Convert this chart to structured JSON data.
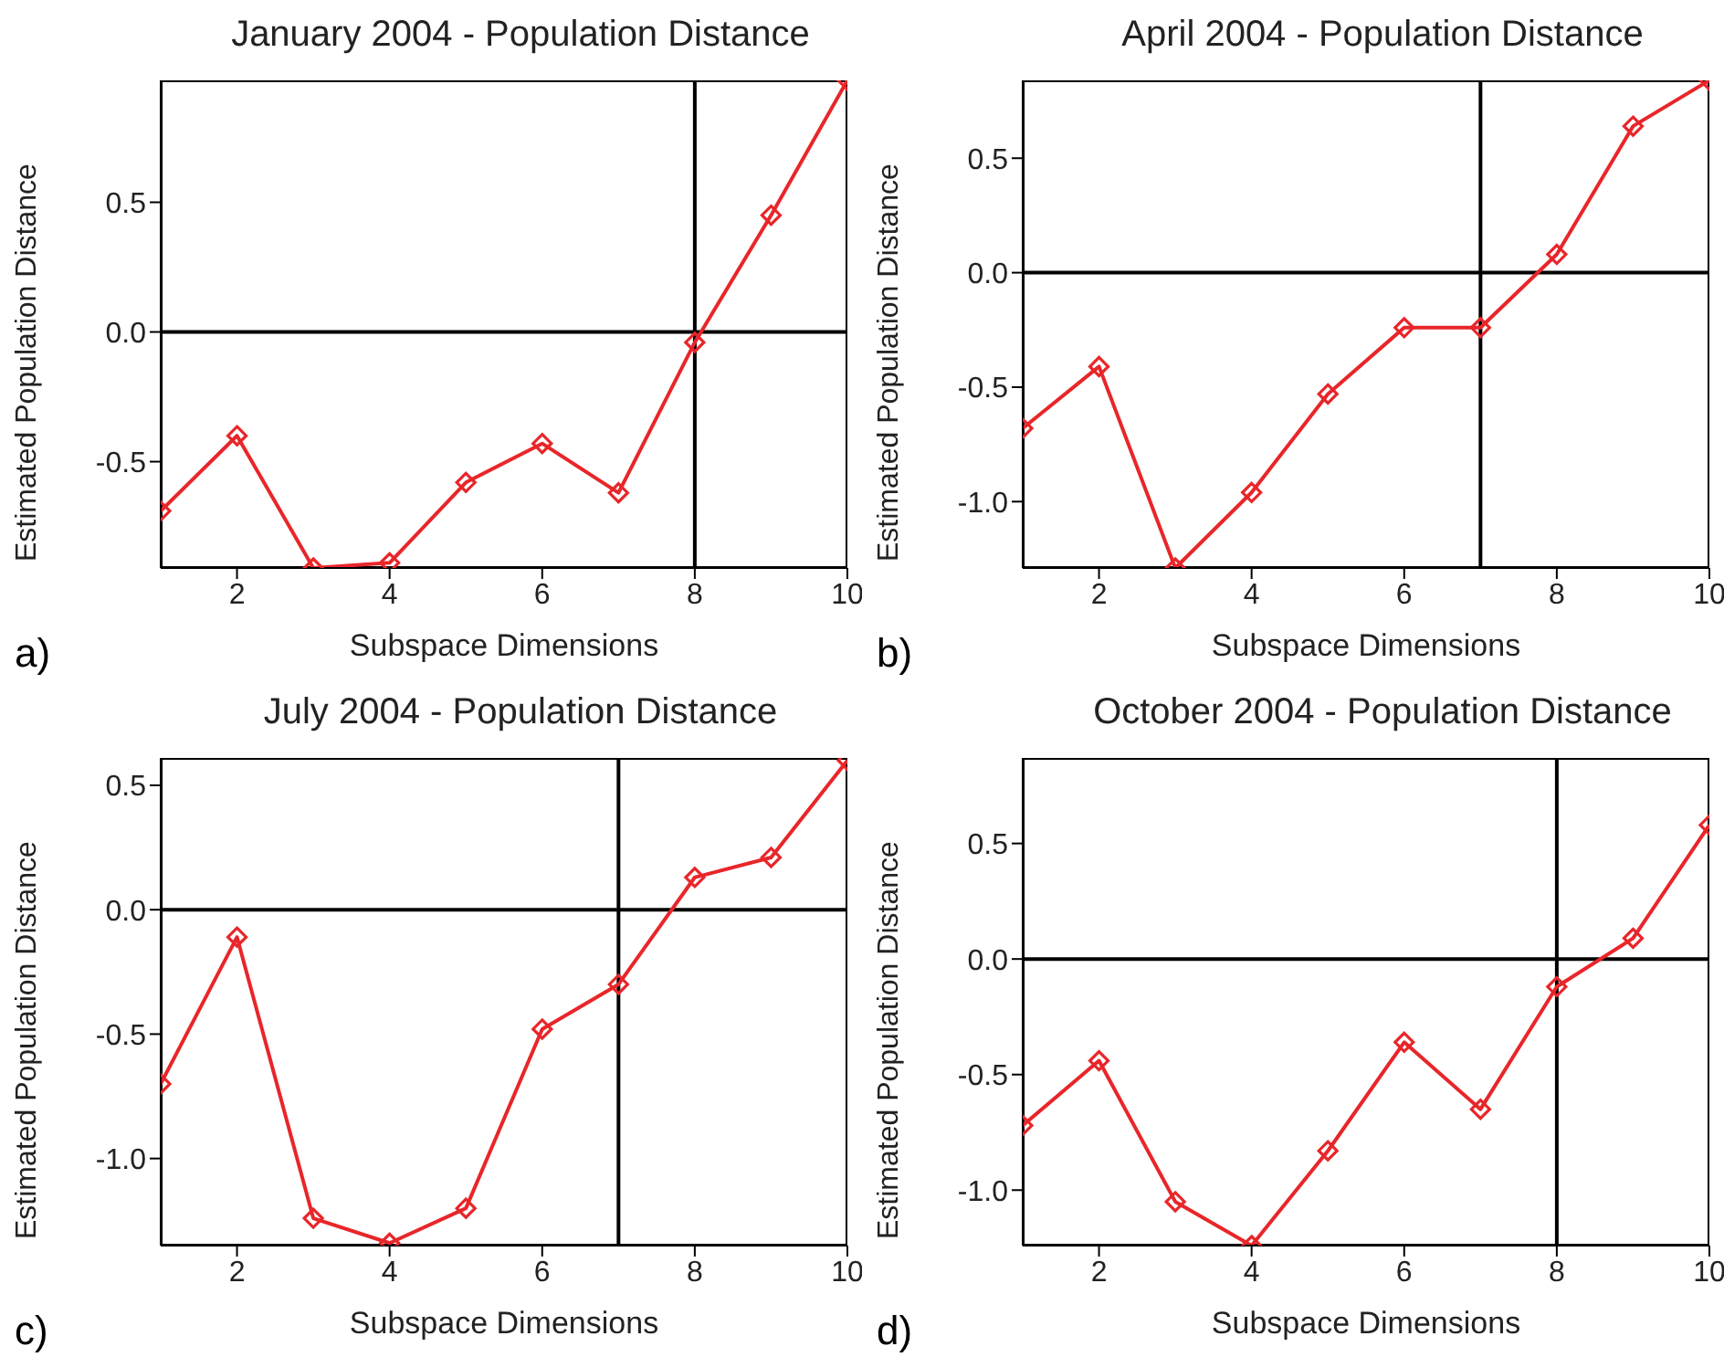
{
  "chart_data": [
    {
      "type": "line",
      "title": "January 2004 - Population Distance",
      "xlabel": "Subspace Dimensions",
      "ylabel": "Estimated Population Distance",
      "x": [
        1,
        2,
        3,
        4,
        5,
        6,
        7,
        8,
        9,
        10
      ],
      "series": [
        {
          "color": "#e8262a",
          "values": [
            -0.69,
            -0.4,
            -0.91,
            -0.89,
            -0.58,
            -0.43,
            -0.62,
            -0.04,
            0.45,
            0.97
          ]
        }
      ],
      "xlim": [
        1,
        10
      ],
      "xticks": [
        2,
        4,
        6,
        8,
        10
      ],
      "ylim": [
        -0.91,
        0.97
      ],
      "yticks": [
        {
          "value": -0.5,
          "label": "-0.5"
        },
        {
          "value": 0,
          "label": "0.0"
        },
        {
          "value": 0.5,
          "label": "0.5"
        }
      ],
      "ref_lines": [
        {
          "axis": "y",
          "value": 0,
          "color": "#000000"
        },
        {
          "axis": "x",
          "value": 8,
          "color": "#000000"
        }
      ],
      "marker": "diamond",
      "line_style": "solid",
      "grid": false,
      "annotations": [
        "a)"
      ]
    },
    {
      "type": "line",
      "title": "April 2004 - Population Distance",
      "xlabel": "Subspace Dimensions",
      "ylabel": "Estimated Population Distance",
      "x": [
        1,
        2,
        3,
        4,
        5,
        6,
        7,
        8,
        9,
        10
      ],
      "series": [
        {
          "color": "#e8262a",
          "values": [
            -0.68,
            -0.41,
            -1.29,
            -0.96,
            -0.53,
            -0.24,
            -0.24,
            0.08,
            0.64,
            0.84
          ]
        }
      ],
      "xlim": [
        1,
        10
      ],
      "xticks": [
        2,
        4,
        6,
        8,
        10
      ],
      "ylim": [
        -1.29,
        0.84
      ],
      "yticks": [
        {
          "value": -1,
          "label": "-1.0"
        },
        {
          "value": -0.5,
          "label": "-0.5"
        },
        {
          "value": 0,
          "label": "0.0"
        },
        {
          "value": 0.5,
          "label": "0.5"
        }
      ],
      "ref_lines": [
        {
          "axis": "y",
          "value": 0,
          "color": "#000000"
        },
        {
          "axis": "x",
          "value": 7,
          "color": "#000000"
        }
      ],
      "marker": "diamond",
      "line_style": "solid",
      "grid": false,
      "annotations": [
        "b)"
      ]
    },
    {
      "type": "line",
      "title": "July 2004 - Population Distance",
      "xlabel": "Subspace Dimensions",
      "ylabel": "Estimated Population Distance",
      "x": [
        1,
        2,
        3,
        4,
        5,
        6,
        7,
        8,
        9,
        10
      ],
      "series": [
        {
          "color": "#e8262a",
          "values": [
            -0.7,
            -0.11,
            -1.24,
            -1.34,
            -1.2,
            -0.48,
            -0.3,
            0.13,
            0.21,
            0.6
          ]
        }
      ],
      "xlim": [
        1,
        10
      ],
      "xticks": [
        2,
        4,
        6,
        8,
        10
      ],
      "ylim": [
        -1.35,
        0.61
      ],
      "yticks": [
        {
          "value": -1,
          "label": "-1.0"
        },
        {
          "value": -0.5,
          "label": "-0.5"
        },
        {
          "value": 0,
          "label": "0.0"
        },
        {
          "value": 0.5,
          "label": "0.5"
        }
      ],
      "ref_lines": [
        {
          "axis": "y",
          "value": 0,
          "color": "#000000"
        },
        {
          "axis": "x",
          "value": 7,
          "color": "#000000"
        }
      ],
      "marker": "diamond",
      "line_style": "solid",
      "grid": false,
      "annotations": [
        "c)"
      ]
    },
    {
      "type": "line",
      "title": "October 2004 - Population Distance",
      "xlabel": "Subspace Dimensions",
      "ylabel": "Estimated Population Distance",
      "x": [
        1,
        2,
        3,
        4,
        5,
        6,
        7,
        8,
        9,
        10
      ],
      "series": [
        {
          "color": "#e8262a",
          "values": [
            -0.72,
            -0.44,
            -1.05,
            -1.24,
            -0.83,
            -0.36,
            -0.65,
            -0.12,
            0.09,
            0.58
          ]
        }
      ],
      "xlim": [
        1,
        10
      ],
      "xticks": [
        2,
        4,
        6,
        8,
        10
      ],
      "ylim": [
        -1.24,
        0.87
      ],
      "yticks": [
        {
          "value": -1,
          "label": "-1.0"
        },
        {
          "value": -0.5,
          "label": "-0.5"
        },
        {
          "value": 0,
          "label": "0.0"
        },
        {
          "value": 0.5,
          "label": "0.5"
        }
      ],
      "ref_lines": [
        {
          "axis": "y",
          "value": 0,
          "color": "#000000"
        },
        {
          "axis": "x",
          "value": 8,
          "color": "#000000"
        }
      ],
      "marker": "diamond",
      "line_style": "solid",
      "grid": false,
      "annotations": [
        "d)"
      ]
    }
  ]
}
